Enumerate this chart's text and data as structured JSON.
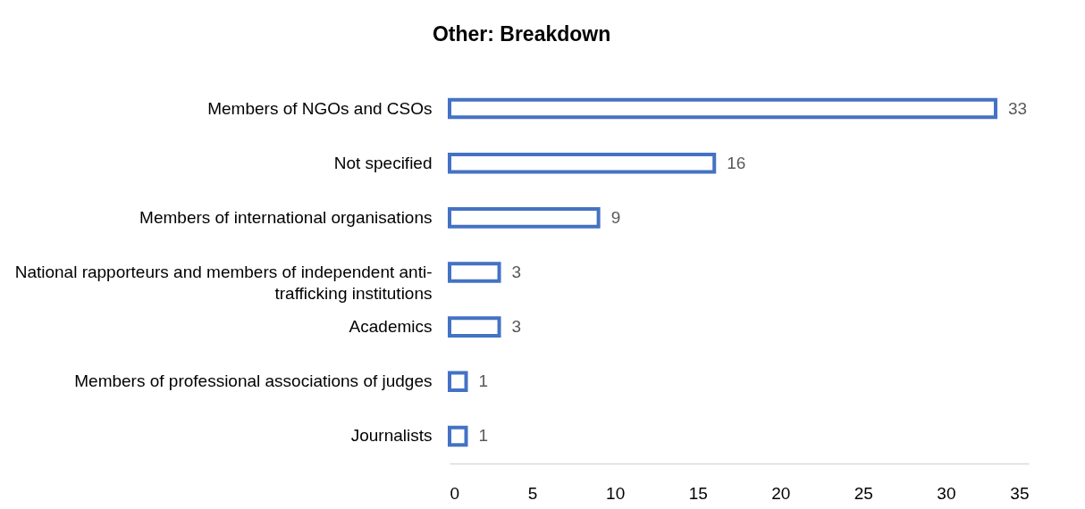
{
  "chart_data": {
    "type": "bar",
    "title": "Other: Breakdown",
    "orientation": "horizontal",
    "categories": [
      "Members of NGOs and CSOs",
      "Not specified",
      "Members of international organisations",
      "National rapporteurs and members of independent anti-trafficking institutions",
      "Academics",
      "Members of professional associations of judges",
      "Journalists"
    ],
    "values": [
      33,
      16,
      9,
      3,
      3,
      1,
      1
    ],
    "color": "#4472c4",
    "xlim": [
      0,
      35
    ],
    "xticks": [
      0,
      5,
      10,
      15,
      20,
      25,
      30,
      35
    ],
    "data_labels": true
  }
}
